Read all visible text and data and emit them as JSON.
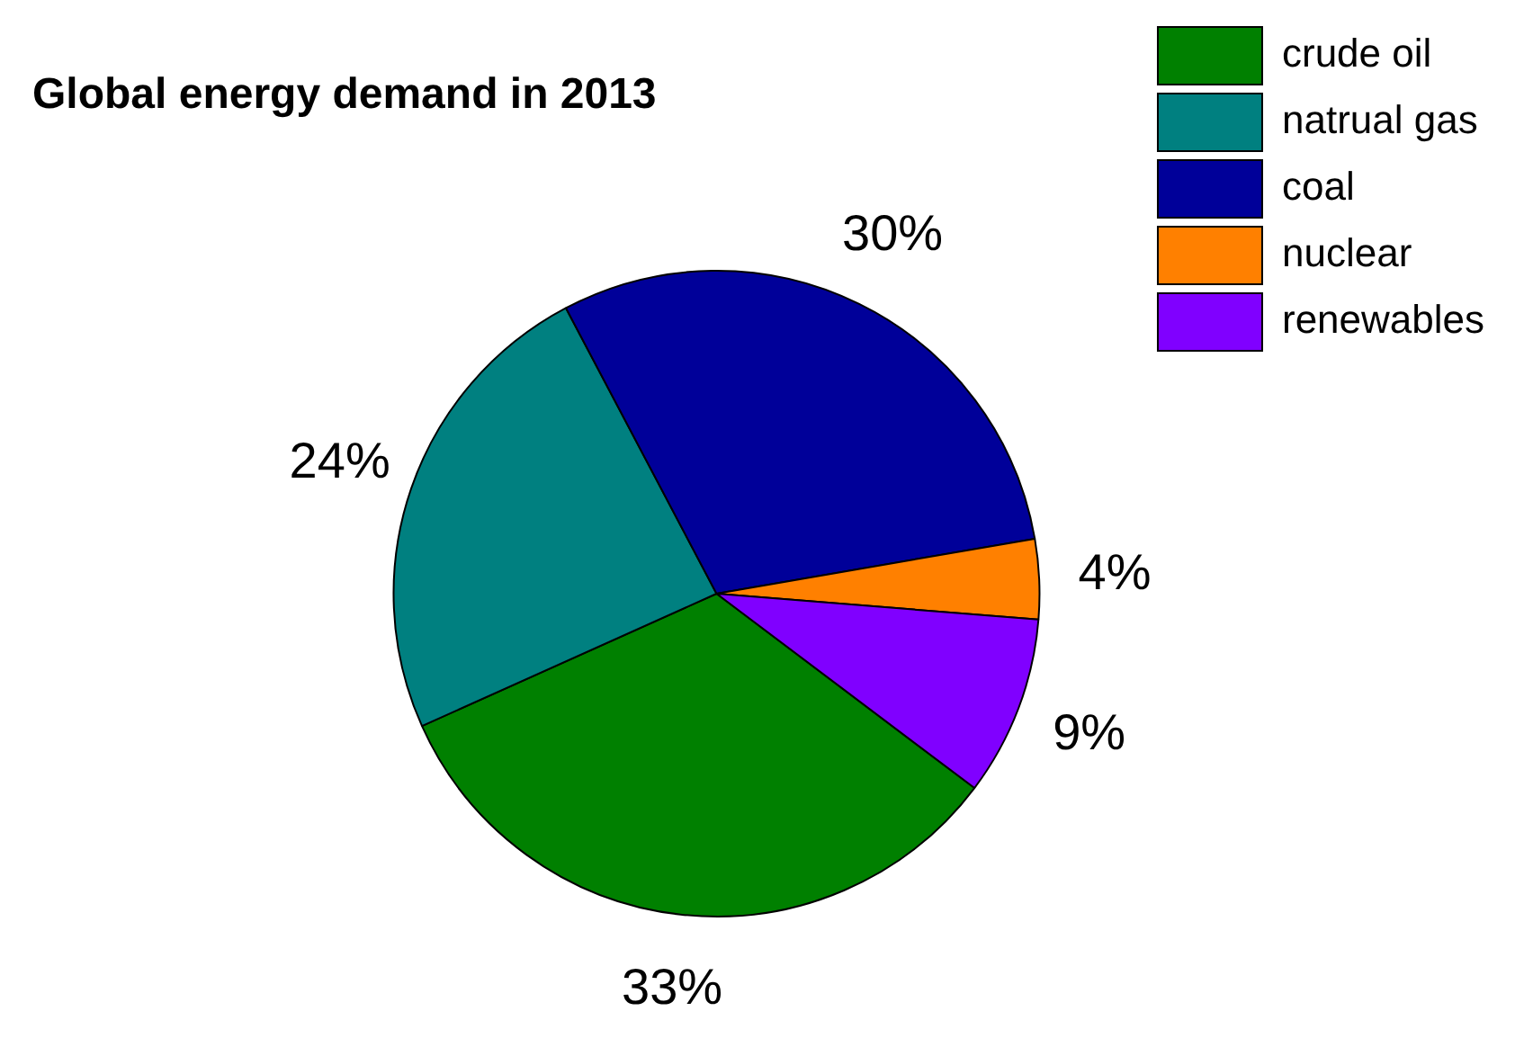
{
  "chart_data": {
    "type": "pie",
    "title": "Global energy demand in 2013",
    "categories": [
      "crude oil",
      "natrual gas",
      "coal",
      "nuclear",
      "renewables"
    ],
    "values": [
      33,
      24,
      30,
      4,
      9
    ],
    "colors": [
      "#008000",
      "#008080",
      "#000099",
      "#ff8000",
      "#8000ff"
    ],
    "value_labels": [
      "33%",
      "24%",
      "30%",
      "4%",
      "9%"
    ],
    "legend": "top right"
  }
}
